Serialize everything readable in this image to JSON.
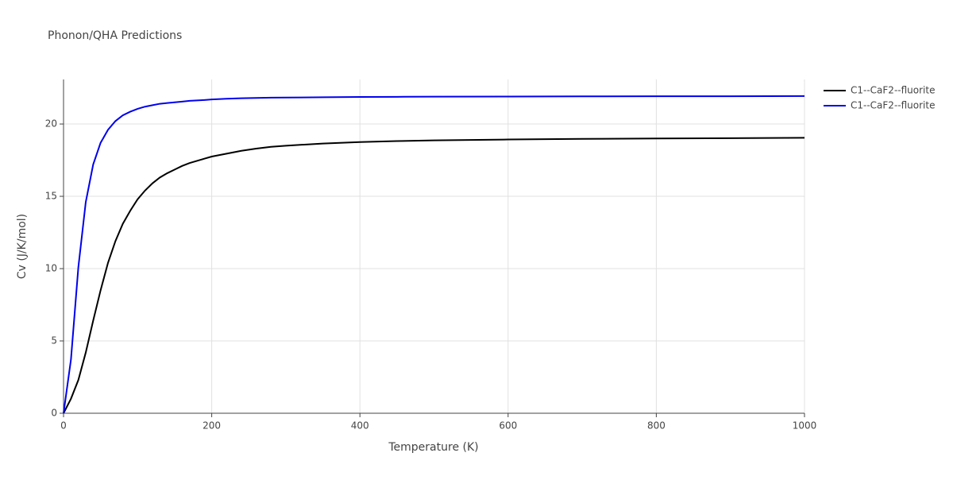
{
  "chart_data": {
    "type": "line",
    "title": "Phonon/QHA Predictions",
    "x_label": "Temperature (K)",
    "y_label": "Cv (J/K/mol)",
    "x": [
      0,
      10,
      20,
      30,
      40,
      50,
      60,
      70,
      80,
      90,
      100,
      110,
      120,
      130,
      140,
      150,
      160,
      170,
      180,
      190,
      200,
      220,
      240,
      260,
      280,
      300,
      350,
      400,
      450,
      500,
      600,
      700,
      800,
      900,
      1000
    ],
    "series": [
      {
        "name": "C1--CaF2--fluorite",
        "color": "#000000",
        "values": [
          0,
          1.0,
          2.3,
          4.2,
          6.4,
          8.5,
          10.4,
          11.9,
          13.1,
          14.0,
          14.8,
          15.4,
          15.9,
          16.3,
          16.6,
          16.85,
          17.1,
          17.3,
          17.45,
          17.6,
          17.75,
          17.95,
          18.15,
          18.3,
          18.42,
          18.5,
          18.65,
          18.75,
          18.82,
          18.87,
          18.93,
          18.97,
          19.0,
          19.02,
          19.05
        ]
      },
      {
        "name": "C1--CaF2--fluorite",
        "color": "#0000ee",
        "values": [
          0,
          3.7,
          10.1,
          14.6,
          17.2,
          18.7,
          19.6,
          20.2,
          20.6,
          20.85,
          21.05,
          21.2,
          21.3,
          21.4,
          21.45,
          21.5,
          21.55,
          21.6,
          21.63,
          21.66,
          21.7,
          21.75,
          21.78,
          21.8,
          21.82,
          21.83,
          21.85,
          21.87,
          21.88,
          21.89,
          21.9,
          21.91,
          21.92,
          21.92,
          21.93
        ]
      }
    ],
    "xlim": [
      0,
      1000
    ],
    "ylim": [
      0,
      23.08
    ],
    "xticks": [
      0,
      200,
      400,
      600,
      800,
      1000
    ],
    "yticks": [
      0,
      5,
      10,
      15,
      20
    ],
    "grid": true,
    "legend": "right"
  }
}
